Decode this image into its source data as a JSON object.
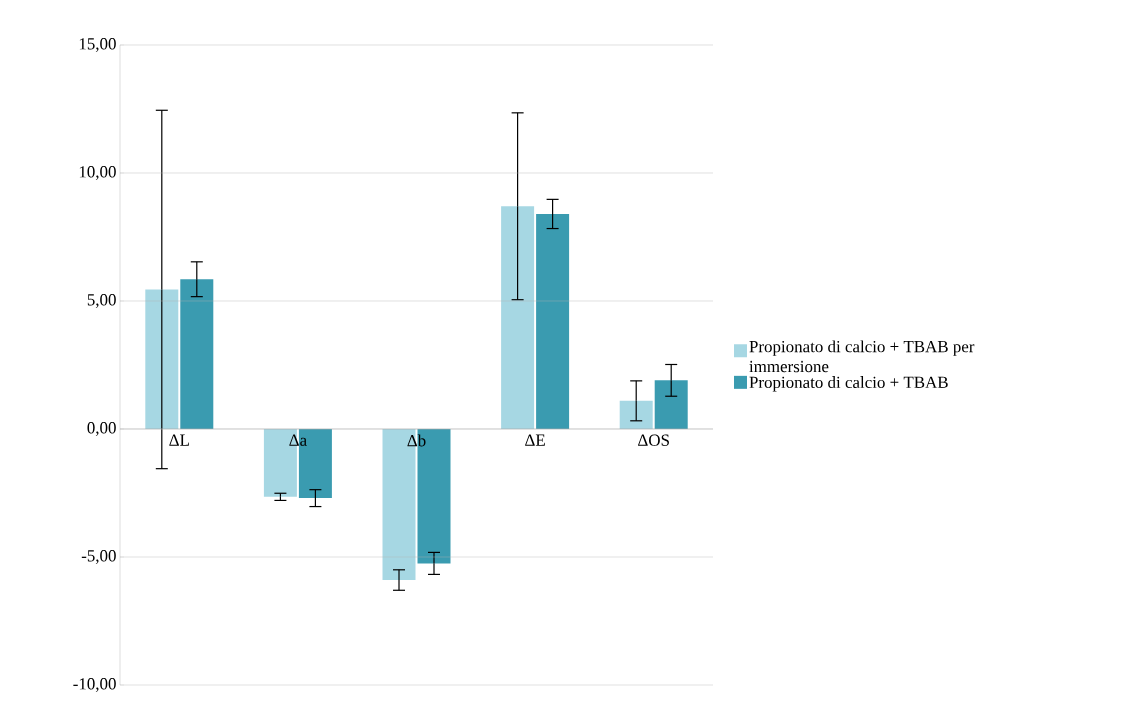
{
  "chart_data": {
    "type": "bar",
    "categories": [
      "ΔL",
      "Δa",
      "Δb",
      "ΔE",
      "ΔOS"
    ],
    "series": [
      {
        "name": "Propionato di calcio + TBAB per immersione",
        "color": "#a6d7e3",
        "values": [
          5.45,
          -2.65,
          -5.9,
          8.7,
          1.1
        ],
        "errors": [
          7.0,
          0.14,
          0.4,
          3.65,
          0.78
        ]
      },
      {
        "name": "Propionato di calcio + TBAB",
        "color": "#3a9bb0",
        "values": [
          5.85,
          -2.7,
          -5.25,
          8.4,
          1.9
        ],
        "errors": [
          0.68,
          0.33,
          0.43,
          0.57,
          0.62
        ]
      }
    ],
    "ylim": [
      -10,
      15
    ],
    "yticks": [
      {
        "value": -10,
        "label": "-10,00"
      },
      {
        "value": -5,
        "label": "-5,00"
      },
      {
        "value": 0,
        "label": "0,00"
      },
      {
        "value": 5,
        "label": "5,00"
      },
      {
        "value": 10,
        "label": "10,00"
      },
      {
        "value": 15,
        "label": "15,00"
      }
    ],
    "grid": "y",
    "legend": "right"
  }
}
